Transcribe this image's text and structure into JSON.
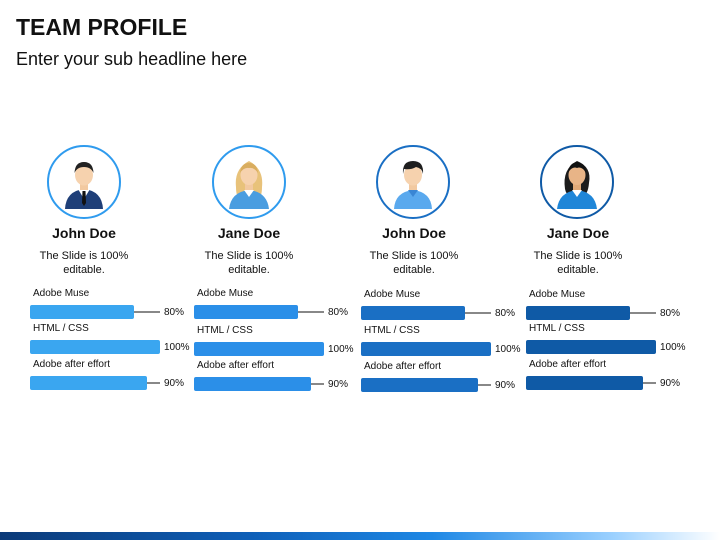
{
  "header": {
    "title": "TEAM PROFILE",
    "subtitle": "Enter your sub headline here"
  },
  "members": [
    {
      "name": "John Doe",
      "description": "The Slide is 100% editable.",
      "avatar_icon": "businessman-icon",
      "color": "#3aa6f0",
      "skills": [
        {
          "label": "Adobe Muse",
          "value": "80%",
          "fraction": 0.8
        },
        {
          "label": "HTML / CSS",
          "value": "100%",
          "fraction": 1.0
        },
        {
          "label": "Adobe after effort",
          "value": "90%",
          "fraction": 0.9
        }
      ]
    },
    {
      "name": "Jane Doe",
      "description": "The Slide is 100% editable.",
      "avatar_icon": "businesswoman-blonde-icon",
      "color": "#2b8fe8",
      "skills": [
        {
          "label": "Adobe Muse",
          "value": "80%",
          "fraction": 0.8
        },
        {
          "label": "HTML / CSS",
          "value": "100%",
          "fraction": 1.0
        },
        {
          "label": "Adobe after effort",
          "value": "90%",
          "fraction": 0.9
        }
      ]
    },
    {
      "name": "John Doe",
      "description": "The Slide is 100% editable.",
      "avatar_icon": "man-casual-icon",
      "color": "#1a6fc4",
      "skills": [
        {
          "label": "Adobe Muse",
          "value": "80%",
          "fraction": 0.8
        },
        {
          "label": "HTML / CSS",
          "value": "100%",
          "fraction": 1.0
        },
        {
          "label": "Adobe after effort",
          "value": "90%",
          "fraction": 0.9
        }
      ]
    },
    {
      "name": "Jane Doe",
      "description": "The Slide is 100% editable.",
      "avatar_icon": "woman-dark-hair-icon",
      "color": "#0f5aa6",
      "skills": [
        {
          "label": "Adobe Muse",
          "value": "80%",
          "fraction": 0.8
        },
        {
          "label": "HTML / CSS",
          "value": "100%",
          "fraction": 1.0
        },
        {
          "label": "Adobe after effort",
          "value": "90%",
          "fraction": 0.9
        }
      ]
    }
  ],
  "colors": {
    "footer_dark": "#0b3a78",
    "footer_light": "#9ad0ff"
  }
}
